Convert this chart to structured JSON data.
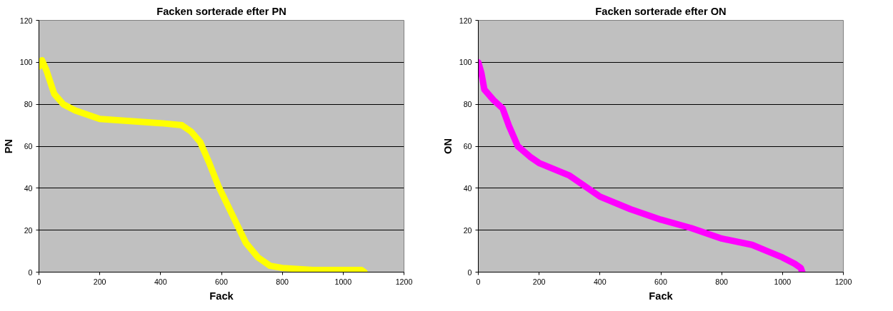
{
  "chart_data": [
    {
      "type": "line",
      "title": "Facken sorterade efter PN",
      "xlabel": "Fack",
      "ylabel": "PN",
      "xlim": [
        0,
        1200
      ],
      "xticks": [
        0,
        200,
        400,
        600,
        800,
        1000,
        1200
      ],
      "ylim": [
        0,
        120
      ],
      "yticks": [
        0,
        20,
        40,
        60,
        80,
        100,
        120
      ],
      "grid": "y",
      "series": [
        {
          "color": "#ffff00",
          "x": [
            0,
            10,
            25,
            50,
            80,
            120,
            200,
            300,
            400,
            470,
            500,
            530,
            560,
            590,
            620,
            650,
            680,
            720,
            760,
            800,
            900,
            1000,
            1060,
            1070
          ],
          "values": [
            98,
            101,
            96,
            85,
            80,
            77,
            73,
            72,
            71,
            70,
            67,
            62,
            52,
            41,
            32,
            23,
            14,
            7,
            3,
            2,
            1,
            1,
            1,
            0
          ]
        }
      ]
    },
    {
      "type": "line",
      "title": "Facken sorterade efter ON",
      "xlabel": "Fack",
      "ylabel": "ON",
      "xlim": [
        0,
        1200
      ],
      "xticks": [
        0,
        200,
        400,
        600,
        800,
        1000,
        1200
      ],
      "ylim": [
        0,
        120
      ],
      "yticks": [
        0,
        20,
        40,
        60,
        80,
        100,
        120
      ],
      "grid": "y",
      "series": [
        {
          "color": "#ff00ff",
          "x": [
            0,
            10,
            20,
            50,
            80,
            100,
            130,
            170,
            200,
            300,
            400,
            500,
            600,
            700,
            800,
            900,
            950,
            1000,
            1040,
            1060,
            1065
          ],
          "values": [
            100,
            95,
            87,
            82,
            78,
            70,
            60,
            55,
            52,
            46,
            36,
            30,
            25,
            21,
            16,
            13,
            10,
            7,
            4,
            2,
            0
          ]
        }
      ]
    }
  ]
}
